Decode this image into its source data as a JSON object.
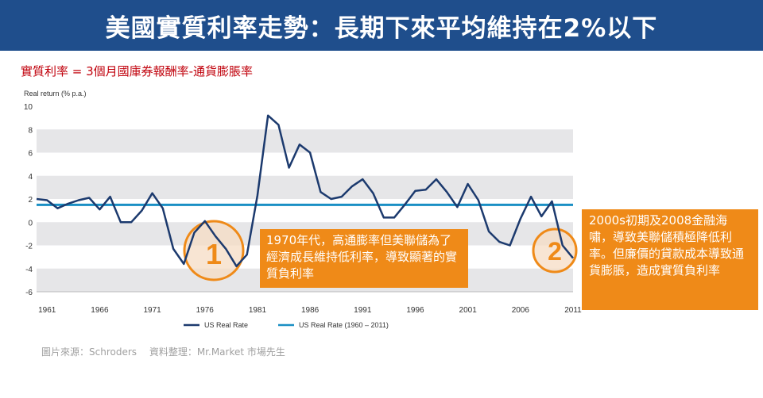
{
  "header": {
    "title": "美國實質利率走勢：長期下來平均維持在2%以下"
  },
  "subtitle": "實質利率 = 3個月國庫券報酬率-通貨膨脹率",
  "annotations": {
    "note1": "1970年代，高通膨率但美聯儲為了經濟成長維持低利率，導致顯著的實質負利率",
    "note2": "2000s初期及2008金融海嘯，導致美聯儲積極降低利率。但廉價的貸款成本導致通貨膨脹，造成實質負利率",
    "marker1": "1",
    "marker2": "2"
  },
  "source": "圖片來源：Schroders　 資料整理：Mr.Market 市場先生",
  "colors": {
    "banner": "#1f4e8c",
    "line": "#1c3a6e",
    "average": "#1a8fc4",
    "callout": "#ef8a18",
    "formula": "#c0000b"
  },
  "chart_data": {
    "type": "line",
    "ylabel": "Real return (% p.a.)",
    "ylim": [
      -6,
      10
    ],
    "yticks": [
      10,
      8,
      6,
      4,
      2,
      0,
      -2,
      -4,
      -6
    ],
    "xlim": [
      1960,
      2011
    ],
    "xticks": [
      1961,
      1966,
      1971,
      1976,
      1981,
      1986,
      1991,
      1996,
      2001,
      2006,
      2011
    ],
    "grid": "horizontal bands",
    "legend": "bottom",
    "series": [
      {
        "name": "US Real Rate",
        "x": [
          1960,
          1961,
          1962,
          1963,
          1964,
          1965,
          1966,
          1967,
          1968,
          1969,
          1970,
          1971,
          1972,
          1973,
          1974,
          1975,
          1976,
          1977,
          1978,
          1979,
          1980,
          1981,
          1982,
          1983,
          1984,
          1985,
          1986,
          1987,
          1988,
          1989,
          1990,
          1991,
          1992,
          1993,
          1994,
          1995,
          1996,
          1997,
          1998,
          1999,
          2000,
          2001,
          2002,
          2003,
          2004,
          2005,
          2006,
          2007,
          2008,
          2009,
          2010,
          2011
        ],
        "values": [
          2.0,
          1.9,
          1.2,
          1.6,
          1.9,
          2.1,
          1.1,
          2.2,
          0.0,
          0.0,
          1.0,
          2.5,
          1.2,
          -2.3,
          -3.6,
          -0.9,
          0.1,
          -1.2,
          -2.3,
          -3.8,
          -2.8,
          2.3,
          9.2,
          8.4,
          4.7,
          6.7,
          6.0,
          2.6,
          2.0,
          2.2,
          3.1,
          3.7,
          2.5,
          0.4,
          0.4,
          1.5,
          2.7,
          2.8,
          3.7,
          2.6,
          1.3,
          3.3,
          1.9,
          -0.8,
          -1.7,
          -2.0,
          0.3,
          2.2,
          0.5,
          1.8,
          -2.0,
          -3.1
        ]
      },
      {
        "name": "US Real Rate (1960 – 2011)",
        "x": [
          1960,
          2011
        ],
        "values": [
          1.5,
          1.5
        ]
      }
    ]
  }
}
